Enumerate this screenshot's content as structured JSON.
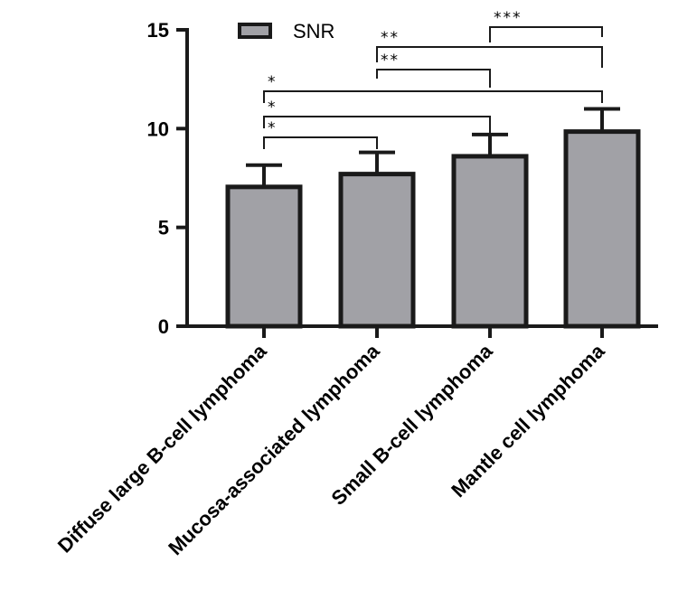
{
  "chart_data": {
    "type": "bar",
    "title": "",
    "xlabel": "",
    "ylabel": "",
    "ylim": [
      0,
      15
    ],
    "yticks": [
      0,
      5,
      10,
      15
    ],
    "ytick_labels": [
      "0",
      "5",
      "10",
      "15"
    ],
    "categories": [
      "Diffuse large B-cell lymphoma",
      "Mucosa-associated lymphoma",
      "Small B-cell lymphoma",
      "Mantle cell lymphoma"
    ],
    "series": [
      {
        "name": "SNR",
        "values": [
          7.05,
          7.7,
          8.6,
          9.85
        ],
        "errors": [
          1.1,
          1.1,
          1.1,
          1.15
        ]
      }
    ],
    "legend": {
      "label": "SNR",
      "placement": "top-left"
    },
    "significance": [
      {
        "from": 0,
        "to": 1,
        "label": "*"
      },
      {
        "from": 0,
        "to": 2,
        "label": "*"
      },
      {
        "from": 0,
        "to": 3,
        "label": "*"
      },
      {
        "from": 1,
        "to": 2,
        "label": "**"
      },
      {
        "from": 1,
        "to": 3,
        "label": "**"
      },
      {
        "from": 2,
        "to": 3,
        "label": "***"
      }
    ],
    "colors": {
      "bar_fill": "#a1a1a6",
      "bar_edge": "#1a1a1a",
      "axis": "#1a1a1a"
    }
  }
}
